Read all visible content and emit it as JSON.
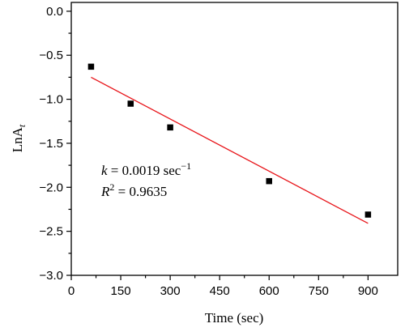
{
  "chart_data": {
    "type": "scatter",
    "title": "",
    "xlabel": "Time (sec)",
    "ylabel_parts": {
      "main": "LnA",
      "sub": "t"
    },
    "xlim": [
      0,
      990
    ],
    "ylim": [
      -3.0,
      0.1
    ],
    "x_ticks": [
      0,
      150,
      300,
      450,
      600,
      750,
      900
    ],
    "x_tick_labels": [
      "0",
      "150",
      "300",
      "450",
      "600",
      "750",
      "900"
    ],
    "y_ticks": [
      0.0,
      -0.5,
      -1.0,
      -1.5,
      -2.0,
      -2.5,
      -3.0
    ],
    "y_tick_labels": [
      "0.0",
      "−0.5",
      "−1.0",
      "−1.5",
      "−2.0",
      "−2.5",
      "−3.0"
    ],
    "grid": false,
    "series": [
      {
        "marker": "square",
        "color": "#000000",
        "points": [
          {
            "x": 60,
            "y": -0.63
          },
          {
            "x": 180,
            "y": -1.05
          },
          {
            "x": 300,
            "y": -1.32
          },
          {
            "x": 600,
            "y": -1.93
          },
          {
            "x": 900,
            "y": -2.31
          }
        ]
      }
    ],
    "fit_line": {
      "color": "#e8161b",
      "x": [
        60,
        900
      ],
      "y": [
        -0.75,
        -2.41
      ]
    },
    "annotations": {
      "k": {
        "var": "k",
        "text": " = 0.0019 sec",
        "sup": "−1"
      },
      "r2": {
        "var": "R",
        "sup": "2",
        "text": " = 0.9635"
      }
    }
  }
}
